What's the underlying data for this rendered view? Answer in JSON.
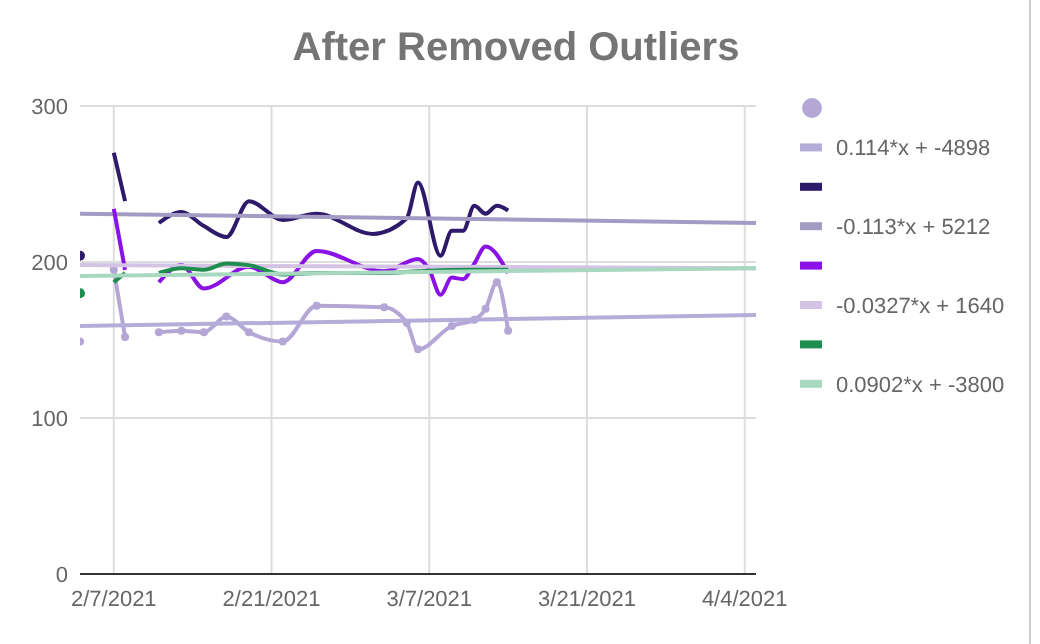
{
  "chart_data": {
    "type": "line",
    "title": "After Removed Outliers",
    "xlim": [
      "2021-02-04",
      "2021-04-05"
    ],
    "xticks": [
      {
        "value": "2021-02-07",
        "label": "2/7/2021"
      },
      {
        "value": "2021-02-21",
        "label": "2/21/2021"
      },
      {
        "value": "2021-03-07",
        "label": "3/7/2021"
      },
      {
        "value": "2021-03-21",
        "label": "3/21/2021"
      },
      {
        "value": "2021-04-04",
        "label": "4/4/2021"
      }
    ],
    "ylim": [
      0,
      300
    ],
    "yticks": [
      0,
      100,
      200,
      300
    ],
    "grid": true,
    "legend": "right",
    "line_style": "solid",
    "series": [
      {
        "color": "#b4a7d6",
        "marker": "circle",
        "x": [
          "2021-02-04",
          "2021-02-05",
          "2021-02-07",
          "2021-02-08",
          "2021-02-09",
          "2021-02-11",
          "2021-02-13",
          "2021-02-15",
          "2021-02-17",
          "2021-02-19",
          "2021-02-22",
          "2021-02-25",
          "2021-03-03",
          "2021-03-05",
          "2021-03-06",
          "2021-03-09",
          "2021-03-11",
          "2021-03-12",
          "2021-03-13",
          "2021-03-14"
        ],
        "values": [
          149,
          null,
          195,
          152,
          null,
          155,
          156,
          155,
          165,
          155,
          149,
          172,
          171,
          161,
          144,
          159,
          163,
          170,
          187,
          156
        ]
      },
      {
        "type": "line",
        "name": "0.114*x + -4898",
        "color": "#b4acd9",
        "marker": "none",
        "x": [
          "2021-02-04",
          "2021-04-05"
        ],
        "values": [
          159,
          166
        ]
      },
      {
        "color": "#2e1a6b",
        "marker": "none",
        "x": [
          "2021-02-04",
          "2021-02-05",
          "2021-02-07",
          "2021-02-08",
          "2021-02-09",
          "2021-02-11",
          "2021-02-13",
          "2021-02-15",
          "2021-02-17",
          "2021-02-19",
          "2021-02-22",
          "2021-02-25",
          "2021-03-02",
          "2021-03-05",
          "2021-03-06",
          "2021-03-08",
          "2021-03-09",
          "2021-03-10",
          "2021-03-11",
          "2021-03-12",
          "2021-03-13",
          "2021-03-14"
        ],
        "values": [
          204,
          null,
          270,
          239,
          null,
          225,
          232,
          223,
          216,
          239,
          227,
          231,
          218,
          228,
          251,
          204,
          220,
          220,
          236,
          231,
          236,
          233
        ]
      },
      {
        "type": "line",
        "name": "-0.113*x + 5212",
        "color": "#a49bc4",
        "marker": "none",
        "x": [
          "2021-02-04",
          "2021-04-05"
        ],
        "values": [
          231,
          225
        ]
      },
      {
        "color": "#8a12e6",
        "marker": "none",
        "x": [
          "2021-02-07",
          "2021-02-08",
          "2021-02-09",
          "2021-02-11",
          "2021-02-13",
          "2021-02-15",
          "2021-02-19",
          "2021-02-22",
          "2021-02-25",
          "2021-03-03",
          "2021-03-06",
          "2021-03-07",
          "2021-03-08",
          "2021-03-09",
          "2021-03-10",
          "2021-03-11",
          "2021-03-12",
          "2021-03-14"
        ],
        "values": [
          234,
          195,
          null,
          187,
          198,
          183,
          197,
          187,
          207,
          194,
          202,
          195,
          179,
          190,
          189,
          199,
          210,
          193
        ]
      },
      {
        "type": "line",
        "name": "-0.0327*x + 1640",
        "color": "#d5c3e6",
        "marker": "none",
        "x": [
          "2021-02-04",
          "2021-04-05"
        ],
        "values": [
          198,
          196
        ]
      },
      {
        "color": "#1e8e4e",
        "marker": "none",
        "x": [
          "2021-02-04",
          "2021-02-05",
          "2021-02-07",
          "2021-02-08",
          "2021-02-09",
          "2021-02-11",
          "2021-02-13",
          "2021-02-15",
          "2021-02-17",
          "2021-02-19",
          "2021-02-22",
          "2021-02-25",
          "2021-03-03",
          "2021-03-06",
          "2021-03-10",
          "2021-03-14"
        ],
        "values": [
          180,
          null,
          187,
          193,
          null,
          193,
          196,
          195,
          199,
          198,
          192,
          193,
          193,
          194,
          195,
          195
        ]
      },
      {
        "type": "line",
        "name": "0.0902*x + -3800",
        "color": "#a8d8c0",
        "marker": "none",
        "x": [
          "2021-02-04",
          "2021-04-05"
        ],
        "values": [
          191,
          196
        ]
      }
    ]
  }
}
